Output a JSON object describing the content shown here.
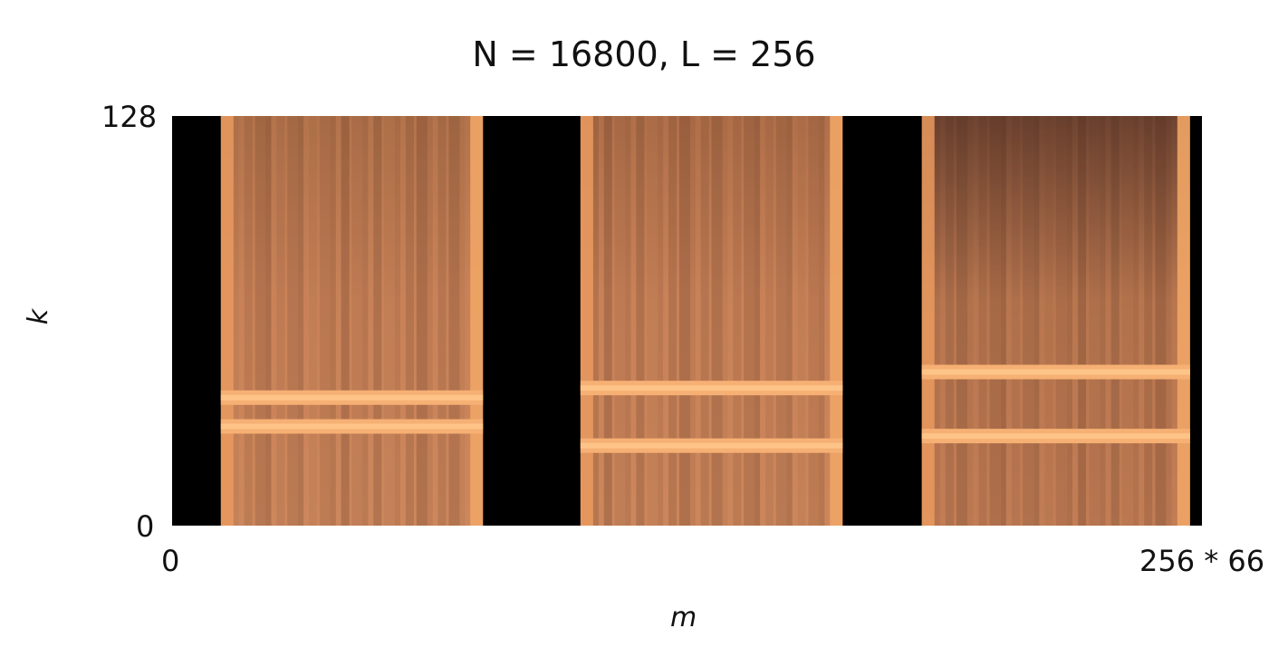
{
  "chart_data": {
    "type": "heatmap",
    "title": "N = 16800, L = 256",
    "xlabel": "m",
    "ylabel": "k",
    "xticks": [
      "0",
      "256 * 66"
    ],
    "yticks": [
      "128",
      "0"
    ],
    "xlim": [
      0,
      16896
    ],
    "ylim": [
      0,
      128
    ],
    "colormap": "copper",
    "background_color": "#000000",
    "segments": [
      {
        "m_range": [
          800,
          5100
        ],
        "band_k": [
          31,
          40
        ]
      },
      {
        "m_range": [
          6700,
          11000
        ],
        "band_k": [
          25,
          43
        ]
      },
      {
        "m_range": [
          12300,
          16700
        ],
        "band_k": [
          28,
          48
        ]
      }
    ]
  }
}
